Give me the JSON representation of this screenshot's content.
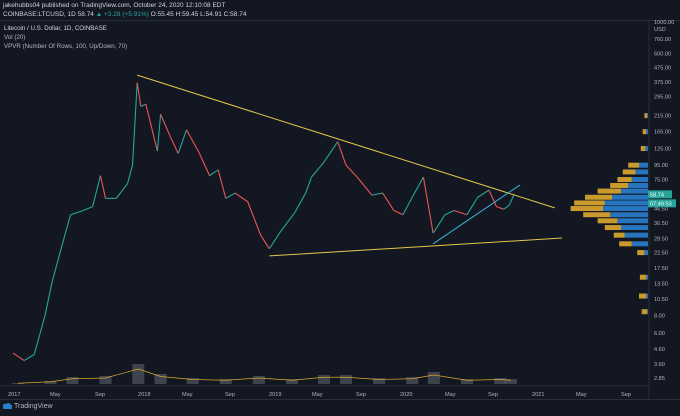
{
  "header": {
    "publish_line": "jakehubbs04 published on TradingView.com, October 24, 2020 12:10:08 EDT",
    "symbol": "COINBASE:LTCUSD, 1D",
    "last": "58.74",
    "change": "▲ +3.28 (+5.91%)",
    "open": "O:55.45",
    "high": "H:59.45",
    "low": "L:54.91",
    "close": "C:58.74"
  },
  "legend": {
    "main": "Litecoin / U.S. Dollar, 1D, COINBASE",
    "vol": "Vol (20)",
    "vpvr": "VPVR (Number Of Rows, 100, Up/Down, 70)"
  },
  "price_axis": {
    "unit": "USD",
    "labels": [
      "1000.00",
      "760.00",
      "600.00",
      "475.00",
      "375.00",
      "295.00",
      "215.00",
      "165.00",
      "125.00",
      "95.00",
      "75.00",
      "46.50",
      "36.50",
      "28.50",
      "22.50",
      "17.50",
      "13.50",
      "10.50",
      "8.00",
      "6.00",
      "4.60",
      "3.60",
      "2.85"
    ],
    "last_price_tag": "58.74",
    "countdown_tag": "07:49:53",
    "scale": "log"
  },
  "time_axis": {
    "labels": [
      "2017",
      "May",
      "Sep",
      "2018",
      "May",
      "Sep",
      "2019",
      "May",
      "Sep",
      "2020",
      "May",
      "Sep",
      "2021",
      "May",
      "Sep"
    ]
  },
  "branding": "TradingView",
  "colors": {
    "bg": "#131722",
    "up": "#26a69a",
    "down": "#ef5350",
    "trendline": "#e6c74c",
    "trendline2": "#3bb3d6",
    "vp_up": "#2a7fcf",
    "vp_down": "#e0a82e"
  },
  "chart_data": {
    "type": "line",
    "title": "Litecoin / U.S. Dollar, 1D, COINBASE",
    "yscale": "log",
    "ylim": [
      2.6,
      1100
    ],
    "xlim": [
      "2016-12-20",
      "2021-10-20"
    ],
    "series": [
      {
        "x": [
          "2017-01-01",
          "2017-02-01",
          "2017-03-01",
          "2017-03-31",
          "2017-04-20",
          "2017-05-25",
          "2017-06-10",
          "2017-07-15",
          "2017-08-10",
          "2017-09-01",
          "2017-09-15",
          "2017-10-15",
          "2017-11-15",
          "2017-11-29",
          "2017-12-12",
          "2017-12-22",
          "2018-01-05",
          "2018-02-06",
          "2018-02-15",
          "2018-03-15",
          "2018-04-05",
          "2018-04-28",
          "2018-06-01",
          "2018-07-01",
          "2018-07-25",
          "2018-08-15",
          "2018-09-10",
          "2018-10-15",
          "2018-11-20",
          "2018-12-14",
          "2019-01-15",
          "2019-02-24",
          "2019-03-25",
          "2019-04-10",
          "2019-05-15",
          "2019-06-22",
          "2019-07-15",
          "2019-08-15",
          "2019-09-25",
          "2019-10-25",
          "2019-11-25",
          "2019-12-20",
          "2020-01-15",
          "2020-02-15",
          "2020-03-13",
          "2020-04-15",
          "2020-05-10",
          "2020-06-15",
          "2020-07-15",
          "2020-08-15",
          "2020-09-05",
          "2020-09-25",
          "2020-10-10",
          "2020-10-24"
        ],
        "close": [
          4.3,
          3.8,
          4.2,
          8,
          14,
          30,
          42,
          45,
          48,
          80,
          55,
          55,
          70,
          95,
          370,
          250,
          260,
          120,
          220,
          150,
          115,
          170,
          118,
          80,
          88,
          55,
          60,
          52,
          30,
          24,
          32,
          44,
          60,
          78,
          100,
          140,
          95,
          78,
          58,
          60,
          45,
          42,
          56,
          78,
          31,
          42,
          45,
          42,
          56,
          63,
          48,
          46,
          49,
          58.74
        ]
      }
    ],
    "volume": {
      "name": "Vol (20)",
      "x": [
        "2017-01",
        "2017-04",
        "2017-06",
        "2017-09",
        "2017-12",
        "2018-02",
        "2018-05",
        "2018-08",
        "2018-11",
        "2019-02",
        "2019-05",
        "2019-07",
        "2019-10",
        "2020-01",
        "2020-03",
        "2020-06",
        "2020-09",
        "2020-10"
      ],
      "values": [
        5,
        15,
        35,
        40,
        100,
        50,
        30,
        25,
        40,
        25,
        45,
        45,
        30,
        35,
        60,
        25,
        30,
        25
      ]
    },
    "trendlines": [
      {
        "color": "#e6c74c",
        "from": [
          "2017-12-12",
          419
        ],
        "to": [
          "2021-02-14",
          47
        ]
      },
      {
        "color": "#e6c74c",
        "from": [
          "2018-12-14",
          21.3
        ],
        "to": [
          "2021-03-06",
          28.6
        ]
      },
      {
        "color": "#3bb3d6",
        "from": [
          "2020-03-13",
          26
        ],
        "to": [
          "2020-11-09",
          68.5
        ]
      }
    ],
    "volume_profile": [
      {
        "price": 95,
        "up": 10,
        "down": 12
      },
      {
        "price": 85,
        "up": 14,
        "down": 14
      },
      {
        "price": 75,
        "up": 18,
        "down": 16
      },
      {
        "price": 68,
        "up": 22,
        "down": 20
      },
      {
        "price": 62,
        "up": 30,
        "down": 26
      },
      {
        "price": 56,
        "up": 40,
        "down": 30
      },
      {
        "price": 51,
        "up": 48,
        "down": 34
      },
      {
        "price": 46.5,
        "up": 50,
        "down": 36
      },
      {
        "price": 42,
        "up": 42,
        "down": 30
      },
      {
        "price": 38,
        "up": 34,
        "down": 22
      },
      {
        "price": 34,
        "up": 30,
        "down": 18
      },
      {
        "price": 30,
        "up": 26,
        "down": 12
      },
      {
        "price": 26,
        "up": 18,
        "down": 14
      },
      {
        "price": 22.5,
        "up": 4,
        "down": 8
      },
      {
        "price": 15,
        "up": 2,
        "down": 7
      },
      {
        "price": 11,
        "up": 2,
        "down": 8
      },
      {
        "price": 8.5,
        "up": 1,
        "down": 6
      },
      {
        "price": 125,
        "up": 3,
        "down": 5
      },
      {
        "price": 165,
        "up": 2,
        "down": 4
      },
      {
        "price": 215,
        "up": 1,
        "down": 3
      }
    ]
  }
}
